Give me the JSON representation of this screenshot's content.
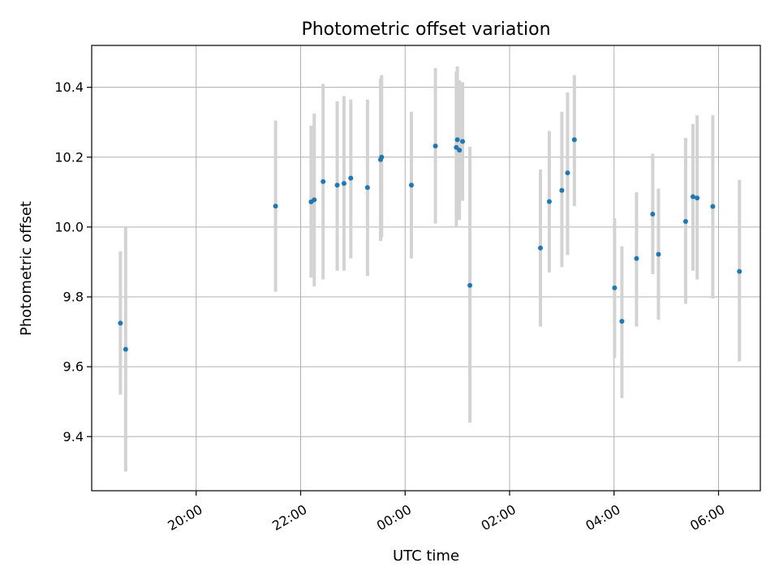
{
  "chart_data": {
    "type": "scatter",
    "title": "Photometric offset variation",
    "xlabel": "UTC time",
    "ylabel": "Photometric offset",
    "x_unit": "hours",
    "xlim": [
      18.0,
      30.8
    ],
    "ylim": [
      9.245,
      10.52
    ],
    "x_ticks": [
      {
        "value": 20,
        "label": "20:00"
      },
      {
        "value": 22,
        "label": "22:00"
      },
      {
        "value": 24,
        "label": "00:00"
      },
      {
        "value": 26,
        "label": "02:00"
      },
      {
        "value": 28,
        "label": "04:00"
      },
      {
        "value": 30,
        "label": "06:00"
      }
    ],
    "y_ticks": [
      {
        "value": 9.4,
        "label": "9.4"
      },
      {
        "value": 9.6,
        "label": "9.6"
      },
      {
        "value": 9.8,
        "label": "9.8"
      },
      {
        "value": 10.0,
        "label": "10.0"
      },
      {
        "value": 10.2,
        "label": "10.2"
      },
      {
        "value": 10.4,
        "label": "10.4"
      }
    ],
    "grid": true,
    "colors": {
      "point": "#1f77b4",
      "errorbar": "#d3d3d3"
    },
    "points": [
      {
        "x": 18.55,
        "y": 9.725,
        "lo": 9.52,
        "hi": 9.93
      },
      {
        "x": 18.65,
        "y": 9.65,
        "lo": 9.3,
        "hi": 10.0
      },
      {
        "x": 21.52,
        "y": 10.06,
        "lo": 9.815,
        "hi": 10.305
      },
      {
        "x": 22.2,
        "y": 10.072,
        "lo": 9.855,
        "hi": 10.29
      },
      {
        "x": 22.26,
        "y": 10.078,
        "lo": 9.83,
        "hi": 10.325
      },
      {
        "x": 22.43,
        "y": 10.13,
        "lo": 9.85,
        "hi": 10.41
      },
      {
        "x": 22.7,
        "y": 10.12,
        "lo": 9.875,
        "hi": 10.36
      },
      {
        "x": 22.83,
        "y": 10.125,
        "lo": 9.875,
        "hi": 10.375
      },
      {
        "x": 22.96,
        "y": 10.14,
        "lo": 9.91,
        "hi": 10.365
      },
      {
        "x": 23.28,
        "y": 10.113,
        "lo": 9.86,
        "hi": 10.365
      },
      {
        "x": 23.53,
        "y": 10.193,
        "lo": 9.96,
        "hi": 10.425
      },
      {
        "x": 23.55,
        "y": 10.2,
        "lo": 9.97,
        "hi": 10.435
      },
      {
        "x": 24.12,
        "y": 10.12,
        "lo": 9.91,
        "hi": 10.33
      },
      {
        "x": 24.58,
        "y": 10.232,
        "lo": 10.01,
        "hi": 10.455
      },
      {
        "x": 24.98,
        "y": 10.228,
        "lo": 10.0,
        "hi": 10.445
      },
      {
        "x": 25.0,
        "y": 10.25,
        "lo": 10.04,
        "hi": 10.46
      },
      {
        "x": 25.04,
        "y": 10.22,
        "lo": 10.02,
        "hi": 10.42
      },
      {
        "x": 25.1,
        "y": 10.245,
        "lo": 10.075,
        "hi": 10.415
      },
      {
        "x": 25.24,
        "y": 9.833,
        "lo": 9.44,
        "hi": 10.23
      },
      {
        "x": 26.59,
        "y": 9.94,
        "lo": 9.715,
        "hi": 10.165
      },
      {
        "x": 26.76,
        "y": 10.073,
        "lo": 9.87,
        "hi": 10.275
      },
      {
        "x": 27.0,
        "y": 10.105,
        "lo": 9.885,
        "hi": 10.33
      },
      {
        "x": 27.11,
        "y": 10.155,
        "lo": 9.92,
        "hi": 10.385
      },
      {
        "x": 27.24,
        "y": 10.25,
        "lo": 10.06,
        "hi": 10.435
      },
      {
        "x": 28.01,
        "y": 9.826,
        "lo": 9.625,
        "hi": 10.025
      },
      {
        "x": 28.15,
        "y": 9.73,
        "lo": 9.51,
        "hi": 9.945
      },
      {
        "x": 28.43,
        "y": 9.91,
        "lo": 9.715,
        "hi": 10.1
      },
      {
        "x": 28.74,
        "y": 10.037,
        "lo": 9.865,
        "hi": 10.21
      },
      {
        "x": 28.85,
        "y": 9.922,
        "lo": 9.735,
        "hi": 10.11
      },
      {
        "x": 29.37,
        "y": 10.016,
        "lo": 9.78,
        "hi": 10.255
      },
      {
        "x": 29.51,
        "y": 10.087,
        "lo": 9.875,
        "hi": 10.295
      },
      {
        "x": 29.59,
        "y": 10.083,
        "lo": 9.85,
        "hi": 10.32
      },
      {
        "x": 29.89,
        "y": 10.059,
        "lo": 9.795,
        "hi": 10.32
      },
      {
        "x": 30.4,
        "y": 9.873,
        "lo": 9.615,
        "hi": 10.135
      }
    ]
  }
}
